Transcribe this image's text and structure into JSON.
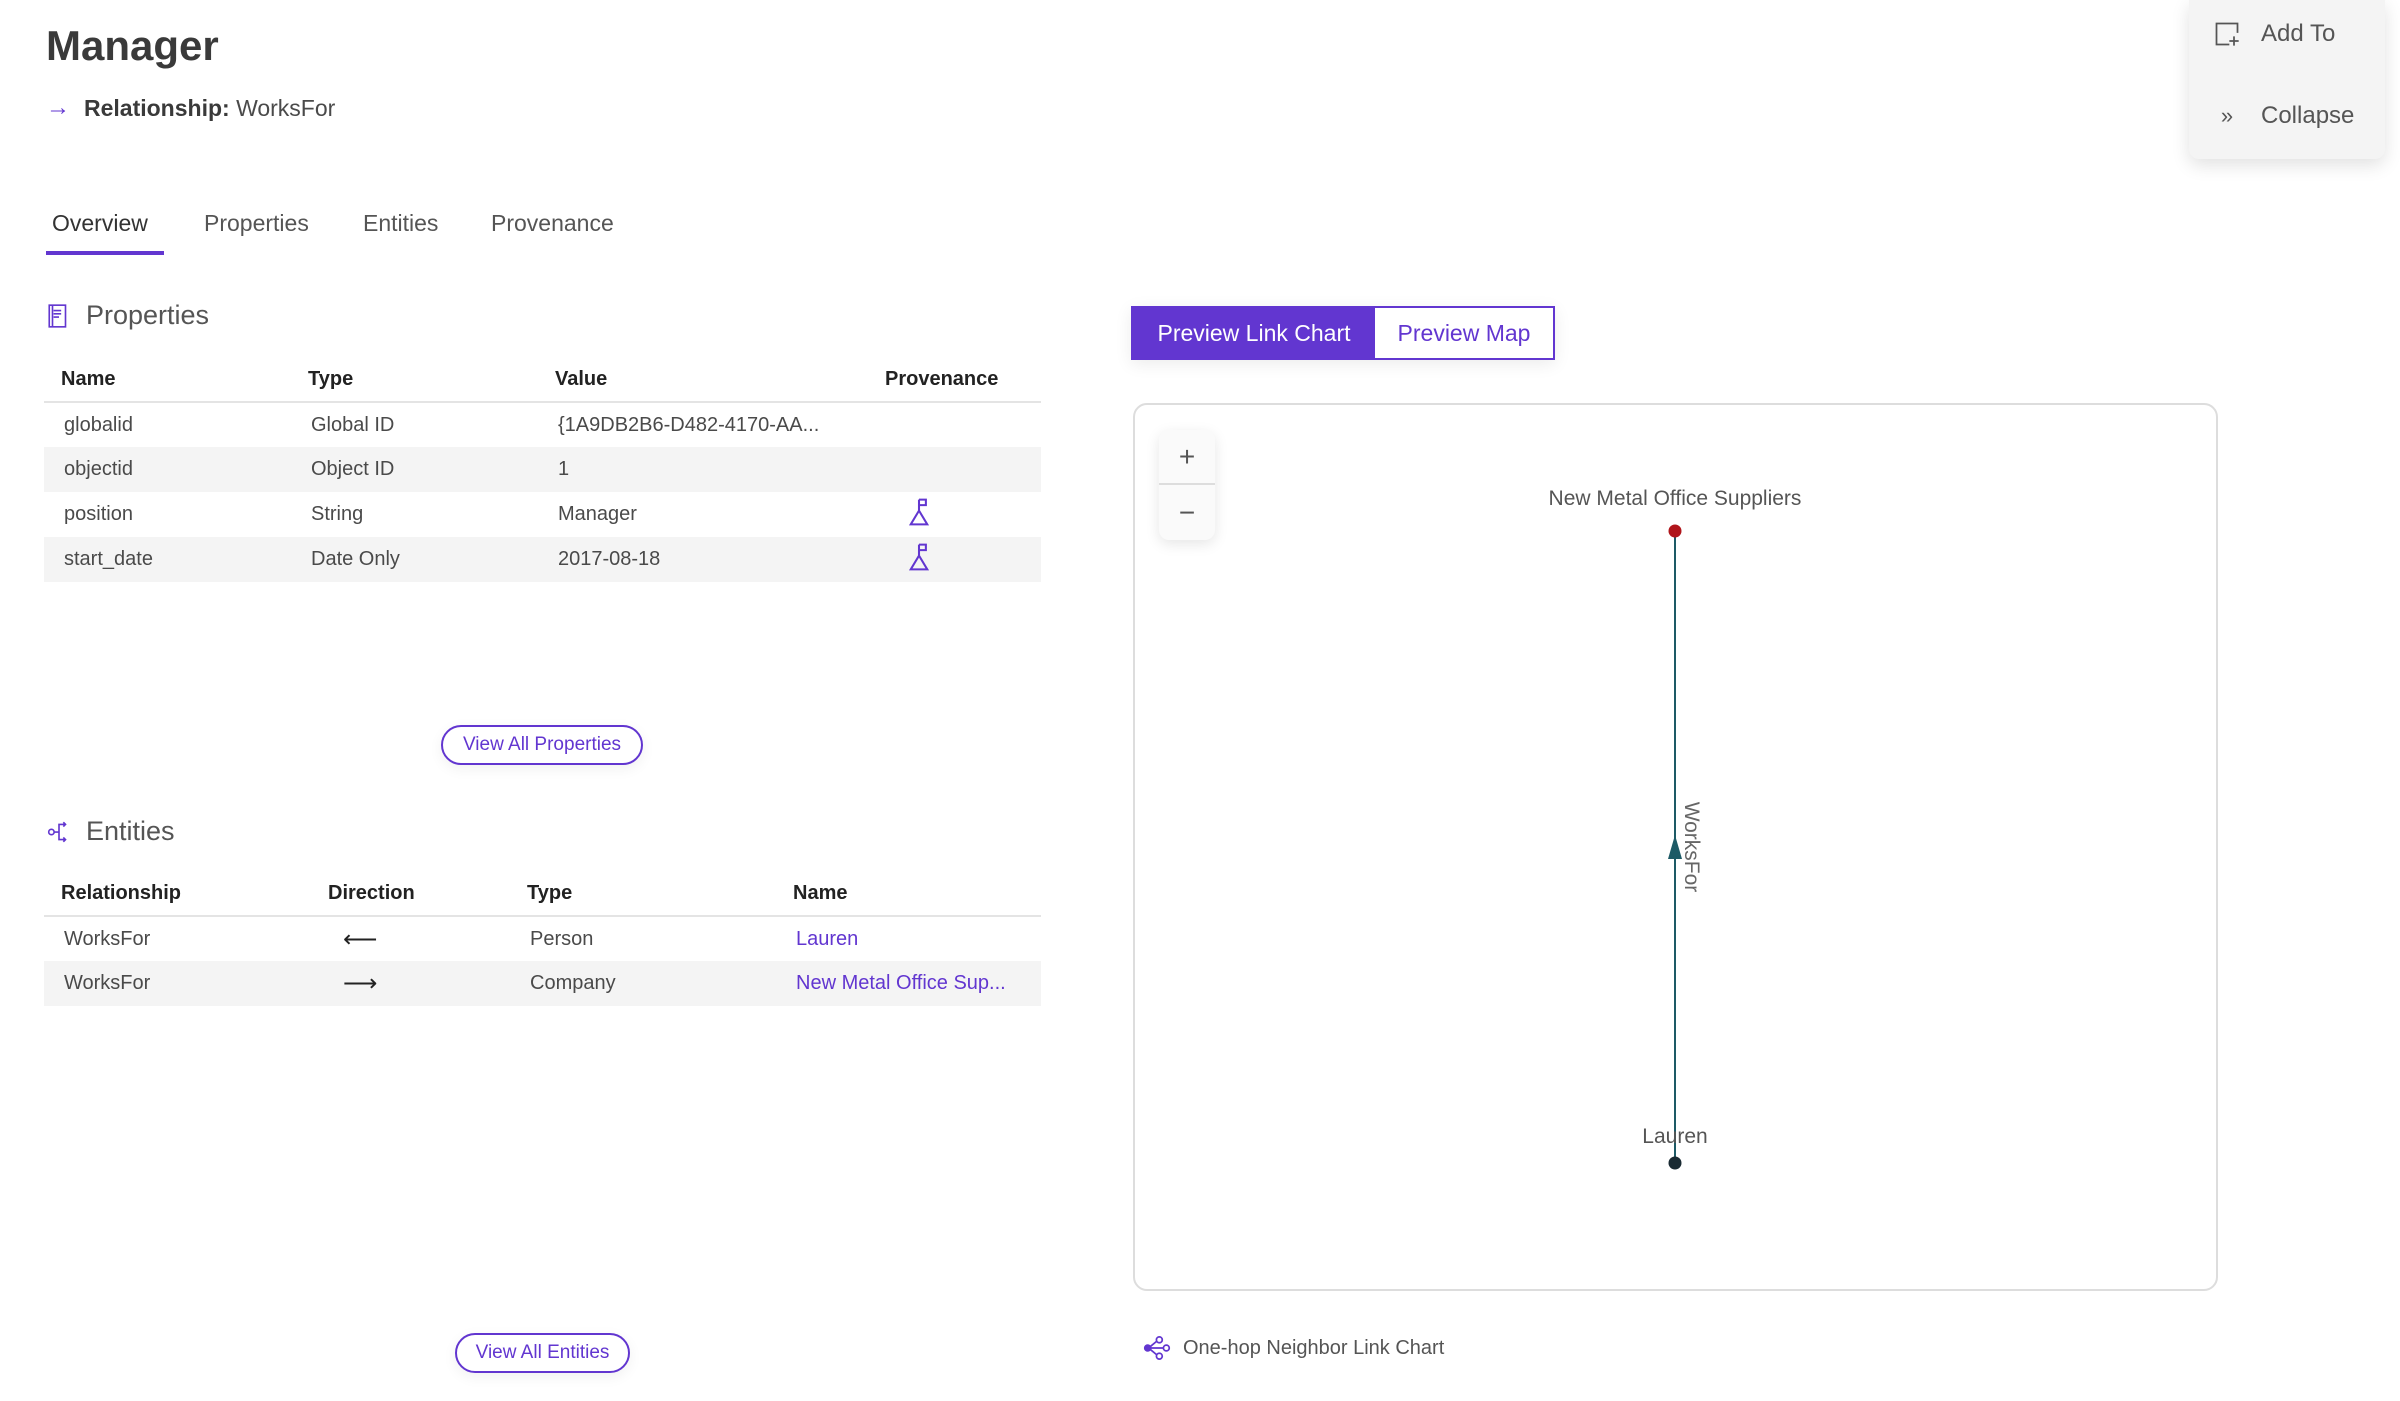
{
  "header": {
    "title": "Manager",
    "relationship_label": "Relationship:",
    "relationship_value": "WorksFor"
  },
  "tabs": [
    {
      "label": "Overview",
      "active": true
    },
    {
      "label": "Properties"
    },
    {
      "label": "Entities"
    },
    {
      "label": "Provenance"
    }
  ],
  "properties": {
    "title": "Properties",
    "columns": [
      "Name",
      "Type",
      "Value",
      "Provenance"
    ],
    "rows": [
      {
        "name": "globalid",
        "type": "Global ID",
        "value": "{1A9DB2B6-D482-4170-AA...",
        "provenance": false
      },
      {
        "name": "objectid",
        "type": "Object ID",
        "value": "1",
        "provenance": false
      },
      {
        "name": "position",
        "type": "String",
        "value": "Manager",
        "provenance": true
      },
      {
        "name": "start_date",
        "type": "Date Only",
        "value": "2017-08-18",
        "provenance": true
      }
    ],
    "view_all": "View All Properties"
  },
  "entities": {
    "title": "Entities",
    "columns": [
      "Relationship",
      "Direction",
      "Type",
      "Name"
    ],
    "rows": [
      {
        "relationship": "WorksFor",
        "direction": "⟵",
        "type": "Person",
        "name": "Lauren"
      },
      {
        "relationship": "WorksFor",
        "direction": "⟶",
        "type": "Company",
        "name": "New Metal Office Sup..."
      }
    ],
    "view_all": "View All Entities"
  },
  "preview": {
    "link_chart": "Preview Link Chart",
    "map": "Preview Map",
    "active": "link_chart"
  },
  "zoom": {
    "in": "+",
    "out": "−"
  },
  "graph": {
    "nodes": [
      {
        "label": "New Metal Office Suppliers",
        "color": "#b0151b"
      },
      {
        "label": "Lauren",
        "color": "#1a2b33"
      }
    ],
    "edge": {
      "label": "WorksFor",
      "from": "Lauren",
      "to": "New Metal Office Suppliers",
      "color": "#1d5a66"
    }
  },
  "footer": {
    "label": "One-hop Neighbor Link Chart"
  },
  "side_panel": {
    "add_to": "Add To",
    "collapse": "Collapse"
  },
  "colors": {
    "accent": "#6236d0"
  }
}
